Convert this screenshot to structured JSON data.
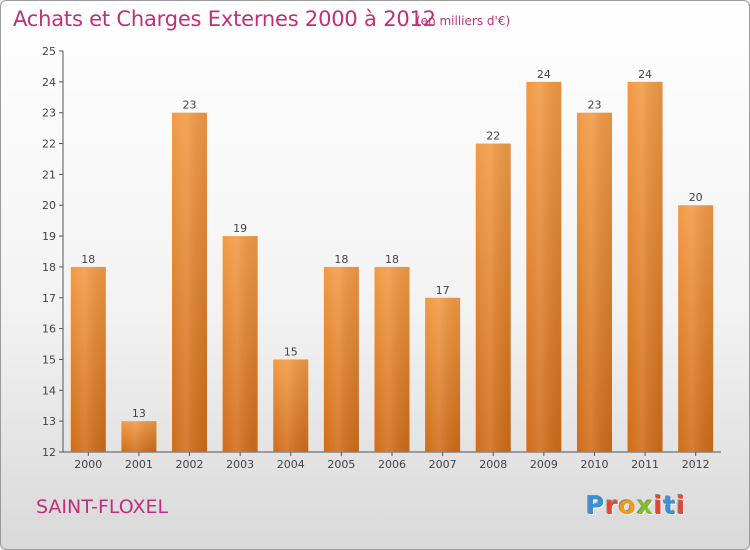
{
  "header": {
    "title": "Achats et Charges Externes 2000 à 2012",
    "subtitle": "(en milliers d'€)"
  },
  "footer": {
    "location": "SAINT-FLOXEL",
    "logo_text": "Proxiti",
    "logo_colors": [
      "#3b8fd6",
      "#e8442f",
      "#f29a1f",
      "#7fbf2a",
      "#e8442f",
      "#3b8fd6",
      "#e8442f"
    ]
  },
  "chart_data": {
    "type": "bar",
    "categories": [
      "2000",
      "2001",
      "2002",
      "2003",
      "2004",
      "2005",
      "2006",
      "2007",
      "2008",
      "2009",
      "2010",
      "2011",
      "2012"
    ],
    "values": [
      18,
      13,
      23,
      19,
      15,
      18,
      18,
      17,
      22,
      24,
      23,
      24,
      20
    ],
    "ylim": [
      12,
      25
    ],
    "yticks": [
      12,
      13,
      14,
      15,
      16,
      17,
      18,
      19,
      20,
      21,
      22,
      23,
      24,
      25
    ],
    "grid": false,
    "bar_color": "#f29a45",
    "bar_color_dark": "#cf6c18"
  }
}
